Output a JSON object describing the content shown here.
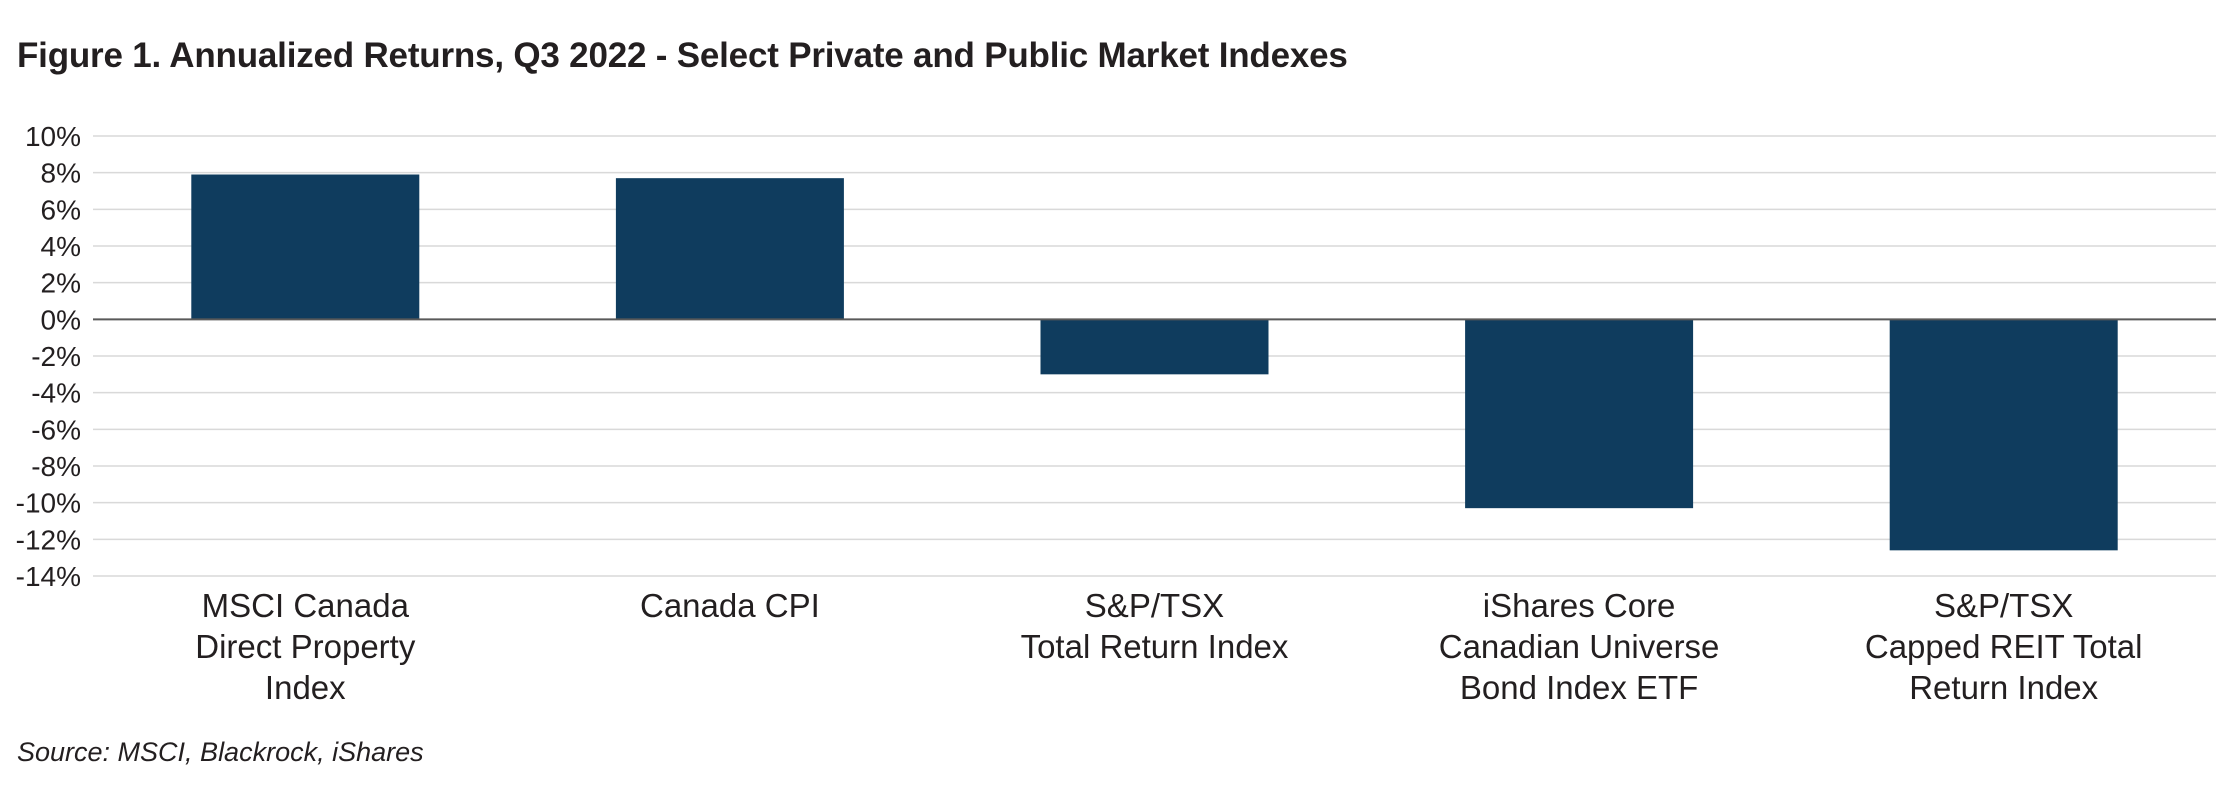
{
  "title": "Figure 1. Annualized Returns, Q3 2022 - Select Private and Public Market Indexes",
  "source": "Source: MSCI, Blackrock, iShares",
  "colors": {
    "bar": "#0f3c5e",
    "grid": "#d9d9d9",
    "axis": "#595959",
    "text": "#231f20"
  },
  "chart_data": {
    "type": "bar",
    "title": "Figure 1. Annualized Returns, Q3 2022 - Select Private and Public Market Indexes",
    "categories": [
      [
        "MSCI Canada",
        "Direct Property",
        "Index"
      ],
      [
        "Canada CPI"
      ],
      [
        "S&P/TSX",
        "Total Return Index"
      ],
      [
        "iShares Core",
        "Canadian Universe",
        "Bond Index ETF"
      ],
      [
        "S&P/TSX",
        "Capped REIT Total",
        "Return Index"
      ]
    ],
    "values": [
      7.9,
      7.7,
      -3.0,
      -10.3,
      -12.6
    ],
    "ylim": [
      -14,
      10
    ],
    "ytick_step": 2,
    "ytick_labels": [
      "10%",
      "8%",
      "6%",
      "4%",
      "2%",
      "0%",
      "-2%",
      "-4%",
      "-6%",
      "-8%",
      "-10%",
      "-12%",
      "-14%"
    ],
    "y_unit": "%",
    "grid": true,
    "legend": "none"
  }
}
